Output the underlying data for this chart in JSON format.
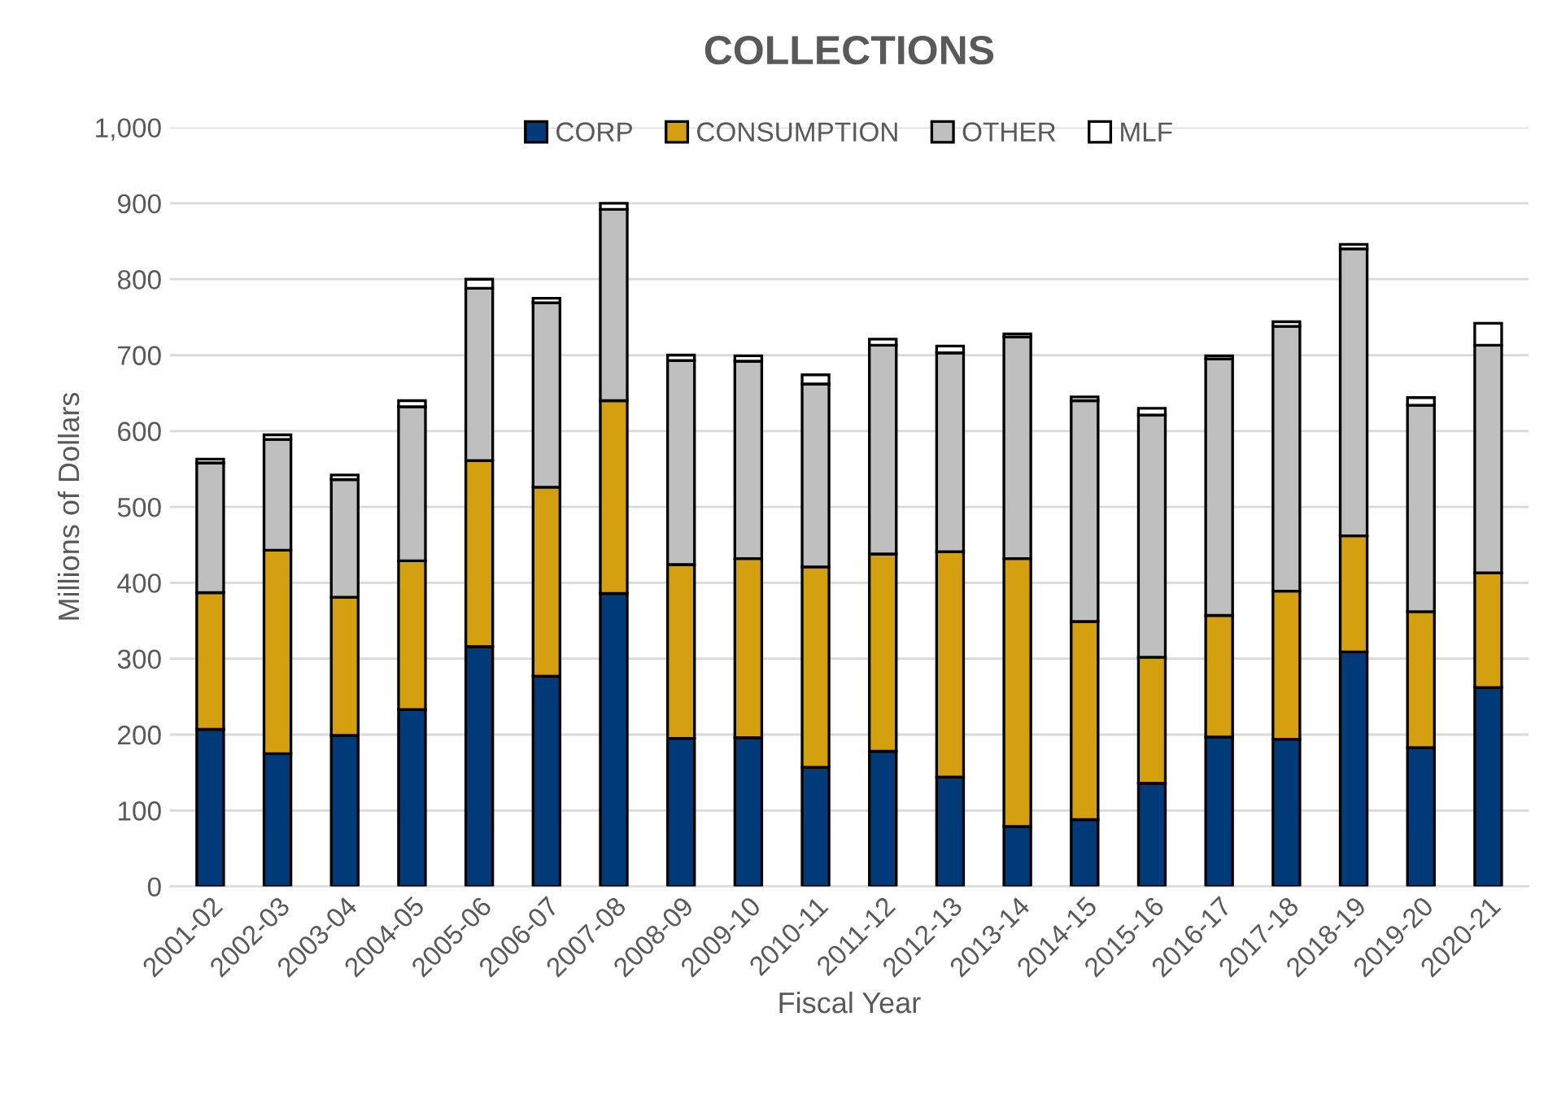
{
  "chart_data": {
    "type": "bar",
    "title": "COLLECTIONS",
    "xlabel": "Fiscal Year",
    "ylabel": "Millions of Dollars",
    "categories": [
      "2001-02",
      "2002-03",
      "2003-04",
      "2004-05",
      "2005-06",
      "2006-07",
      "2007-08",
      "2008-09",
      "2009-10",
      "2010-11",
      "2011-12",
      "2012-13",
      "2013-14",
      "2014-15",
      "2015-16",
      "2016-17",
      "2017-18",
      "2018-19",
      "2019-20",
      "2020-21"
    ],
    "stacked": true,
    "series": [
      {
        "name": "CORP",
        "color": "#003a78",
        "values": [
          207,
          175,
          199,
          233,
          316,
          277,
          386,
          195,
          196,
          157,
          178,
          144,
          79,
          88,
          136,
          197,
          194,
          309,
          183,
          262
        ]
      },
      {
        "name": "CONSUMPTION",
        "color": "#d4a010",
        "values": [
          180,
          268,
          182,
          196,
          245,
          249,
          254,
          229,
          236,
          264,
          260,
          297,
          353,
          261,
          166,
          160,
          195,
          153,
          179,
          151
        ]
      },
      {
        "name": "OTHER",
        "color": "#bfbfbf",
        "values": [
          171,
          146,
          155,
          203,
          227,
          243,
          252,
          269,
          260,
          241,
          275,
          262,
          292,
          291,
          319,
          338,
          349,
          378,
          272,
          300
        ]
      },
      {
        "name": "MLF",
        "color": "#ffffff",
        "values": [
          5,
          6,
          6,
          8,
          12,
          6,
          8,
          7,
          7,
          12,
          8,
          9,
          4,
          5,
          9,
          4,
          6,
          6,
          10,
          29
        ]
      }
    ],
    "ylim": [
      0,
      1000
    ],
    "yticks": [
      0,
      100,
      200,
      300,
      400,
      500,
      600,
      700,
      800,
      900,
      {
        "value": 1000,
        "label": "1,000"
      }
    ],
    "grid": "y",
    "legend": "top"
  }
}
